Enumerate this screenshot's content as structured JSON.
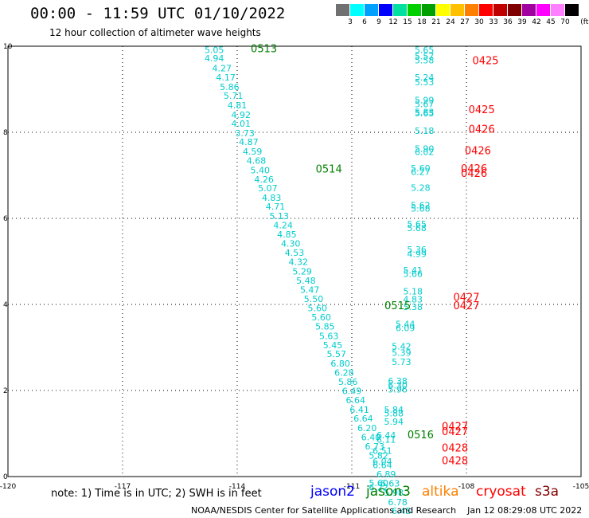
{
  "header": {
    "title": "00:00 - 11:59 UTC 01/10/2022",
    "subtitle": "12 hour collection of altimeter wave heights"
  },
  "colorbar": {
    "colors": [
      "#707070",
      "#00ffff",
      "#00a0ff",
      "#0000ff",
      "#00e0a0",
      "#00d000",
      "#00a000",
      "#ffff00",
      "#ffc000",
      "#ff8000",
      "#ff0000",
      "#c00000",
      "#800000",
      "#a000a0",
      "#ff00ff",
      "#ff80ff",
      "#000000"
    ],
    "labels": [
      "3",
      "6",
      "9",
      "12",
      "15",
      "18",
      "21",
      "24",
      "27",
      "30",
      "33",
      "36",
      "39",
      "42",
      "45",
      "70"
    ],
    "unit": "(ft)"
  },
  "footer": {
    "note": "note:  1) Time is in UTC;  2) SWH is in feet",
    "satellites": [
      {
        "name": "jason2",
        "color": "#0000ff"
      },
      {
        "name": "jason3",
        "color": "#008000"
      },
      {
        "name": "altika",
        "color": "#ff8000"
      },
      {
        "name": "cryosat",
        "color": "#ff0000"
      },
      {
        "name": "s3a",
        "color": "#800000"
      }
    ],
    "credit": "NOAA/NESDIS Center for Satellite Applications and Research    Jan 12 08:29:08 UTC 2022"
  },
  "chart_data": {
    "type": "scatter",
    "xlim": [
      -120,
      -105
    ],
    "ylim": [
      0,
      10
    ],
    "xticks": [
      "-120",
      "-117",
      "-114",
      "-111",
      "-108",
      "-105"
    ],
    "yticks": [
      "0",
      "2",
      "4",
      "6",
      "8",
      "10"
    ],
    "grid": true,
    "series": [
      {
        "name": "jason3",
        "color": "#00cccc",
        "points": [
          [
            -114.6,
            9.92,
            "5.05"
          ],
          [
            -114.6,
            9.72,
            "4.94"
          ],
          [
            -114.4,
            9.49,
            "4.27"
          ],
          [
            -114.3,
            9.28,
            "4.17"
          ],
          [
            -114.2,
            9.06,
            "5.86"
          ],
          [
            -114.1,
            8.85,
            "5.71"
          ],
          [
            -114.0,
            8.63,
            "4.81"
          ],
          [
            -113.9,
            8.41,
            "4.92"
          ],
          [
            -113.9,
            8.2,
            "4.01"
          ],
          [
            -113.8,
            7.98,
            "3.73"
          ],
          [
            -113.7,
            7.78,
            "4.87"
          ],
          [
            -113.6,
            7.56,
            "4.59"
          ],
          [
            -113.5,
            7.34,
            "4.68"
          ],
          [
            -113.4,
            7.12,
            "5.40"
          ],
          [
            -113.3,
            6.91,
            "4.26"
          ],
          [
            -113.2,
            6.7,
            "5.07"
          ],
          [
            -113.1,
            6.48,
            "4.83"
          ],
          [
            -113.0,
            6.28,
            "4.71"
          ],
          [
            -112.9,
            6.06,
            "5.13"
          ],
          [
            -112.8,
            5.84,
            "4.24"
          ],
          [
            -112.7,
            5.63,
            "4.85"
          ],
          [
            -112.6,
            5.42,
            "4.30"
          ],
          [
            -112.5,
            5.2,
            "4.53"
          ],
          [
            -112.4,
            4.99,
            "4.32"
          ],
          [
            -112.3,
            4.77,
            "5.29"
          ],
          [
            -112.2,
            4.56,
            "5.48"
          ],
          [
            -112.1,
            4.34,
            "5.47"
          ],
          [
            -112.0,
            4.13,
            "5.50"
          ],
          [
            -111.9,
            3.92,
            "5.60"
          ],
          [
            -111.8,
            3.7,
            "5.60"
          ],
          [
            -111.7,
            3.49,
            "5.85"
          ],
          [
            -111.6,
            3.27,
            "5.63"
          ],
          [
            -111.5,
            3.06,
            "5.45"
          ],
          [
            -111.4,
            2.85,
            "5.57"
          ],
          [
            -111.3,
            2.63,
            "6.80"
          ],
          [
            -111.2,
            2.42,
            "6.28"
          ],
          [
            -111.1,
            2.2,
            "5.86"
          ],
          [
            -111.0,
            1.99,
            "6.49"
          ],
          [
            -110.9,
            1.78,
            "6.64"
          ],
          [
            -110.8,
            1.56,
            "6.41"
          ],
          [
            -110.7,
            1.35,
            "6.64"
          ],
          [
            -110.6,
            1.13,
            "6.20"
          ],
          [
            -110.5,
            0.92,
            "6.40"
          ],
          [
            -110.4,
            0.7,
            "6.73"
          ],
          [
            -110.3,
            0.49,
            "5.82"
          ],
          [
            -110.2,
            0.27,
            "6.64"
          ],
          [
            -110.1,
            0.06,
            "6.89"
          ],
          [
            -110.0,
            -0.16,
            "6.63"
          ],
          [
            -109.9,
            -0.37,
            "5.98"
          ],
          [
            -109.8,
            -0.59,
            "6.78"
          ],
          [
            -109.7,
            -0.8,
            "6.45"
          ]
        ]
      },
      {
        "name": "cryosat",
        "color": "#00cccc",
        "points": [
          [
            -109.1,
            9.92,
            "5.65"
          ],
          [
            -109.1,
            9.77,
            "5.57"
          ],
          [
            -109.1,
            9.68,
            "5.58"
          ],
          [
            -109.1,
            9.28,
            "5.24"
          ],
          [
            -109.1,
            9.17,
            "5.53"
          ],
          [
            -109.1,
            8.75,
            "5.99"
          ],
          [
            -109.1,
            8.66,
            "5.67"
          ],
          [
            -109.1,
            8.47,
            "5.83"
          ],
          [
            -109.1,
            8.44,
            "5.65"
          ],
          [
            -109.1,
            8.04,
            "5.18"
          ],
          [
            -109.1,
            7.62,
            "5.90"
          ],
          [
            -109.1,
            7.55,
            "6.02"
          ],
          [
            -109.2,
            7.17,
            "5.60"
          ],
          [
            -109.2,
            7.08,
            "6.27"
          ],
          [
            -109.2,
            6.71,
            "5.28"
          ],
          [
            -109.2,
            6.31,
            "5.62"
          ],
          [
            -109.2,
            6.23,
            "5.68"
          ],
          [
            -109.3,
            5.87,
            "5.65"
          ],
          [
            -109.3,
            5.78,
            "5.68"
          ],
          [
            -109.3,
            5.28,
            "5.36"
          ],
          [
            -109.3,
            5.18,
            "4.99"
          ],
          [
            -109.4,
            4.8,
            "5.41"
          ],
          [
            -109.4,
            4.71,
            "5.66"
          ],
          [
            -109.4,
            4.31,
            "5.18"
          ],
          [
            -109.4,
            4.12,
            "4.83"
          ],
          [
            -109.4,
            3.94,
            "5.38"
          ],
          [
            -109.6,
            3.55,
            "5.44"
          ],
          [
            -109.6,
            3.45,
            "6.09"
          ],
          [
            -109.7,
            3.03,
            "5.42"
          ],
          [
            -109.7,
            2.88,
            "5.39"
          ],
          [
            -109.7,
            2.67,
            "5.73"
          ],
          [
            -109.8,
            2.22,
            "6.38"
          ],
          [
            -109.8,
            2.12,
            "6.30"
          ],
          [
            -109.8,
            2.03,
            "5.96"
          ],
          [
            -109.9,
            1.56,
            "5.84"
          ],
          [
            -109.9,
            1.47,
            "5.88"
          ],
          [
            -109.9,
            1.28,
            "5.94"
          ],
          [
            -110.1,
            0.96,
            "6.44"
          ],
          [
            -110.1,
            0.86,
            "6.11"
          ],
          [
            -110.2,
            0.6,
            "6.51"
          ],
          [
            -110.2,
            0.35,
            "6.04"
          ],
          [
            -110.3,
            -0.15,
            "5.60"
          ],
          [
            -110.3,
            -0.25,
            "6.22"
          ]
        ]
      }
    ],
    "time_labels": [
      {
        "x": -113.3,
        "y": 9.95,
        "text": "0513",
        "color": "#008000"
      },
      {
        "x": -111.6,
        "y": 7.16,
        "text": "0514",
        "color": "#008000"
      },
      {
        "x": -109.8,
        "y": 3.98,
        "text": "0515",
        "color": "#008000"
      },
      {
        "x": -109.2,
        "y": 0.98,
        "text": "0516",
        "color": "#008000"
      },
      {
        "x": -107.5,
        "y": 9.68,
        "text": "0425",
        "color": "#ff0000"
      },
      {
        "x": -107.6,
        "y": 8.54,
        "text": "0425",
        "color": "#ff0000"
      },
      {
        "x": -107.6,
        "y": 8.08,
        "text": "0426",
        "color": "#ff0000"
      },
      {
        "x": -107.7,
        "y": 7.58,
        "text": "0426",
        "color": "#ff0000"
      },
      {
        "x": -107.8,
        "y": 7.17,
        "text": "0426",
        "color": "#ff0000"
      },
      {
        "x": -107.8,
        "y": 7.06,
        "text": "0426",
        "color": "#ff0000"
      },
      {
        "x": -108.0,
        "y": 4.18,
        "text": "0427",
        "color": "#ff0000"
      },
      {
        "x": -108.0,
        "y": 3.98,
        "text": "0427",
        "color": "#ff0000"
      },
      {
        "x": -108.3,
        "y": 1.18,
        "text": "0427",
        "color": "#ff0000"
      },
      {
        "x": -108.3,
        "y": 1.06,
        "text": "0427",
        "color": "#ff0000"
      },
      {
        "x": -108.3,
        "y": 0.68,
        "text": "0428",
        "color": "#ff0000"
      },
      {
        "x": -108.3,
        "y": 0.38,
        "text": "0428",
        "color": "#ff0000"
      }
    ]
  }
}
